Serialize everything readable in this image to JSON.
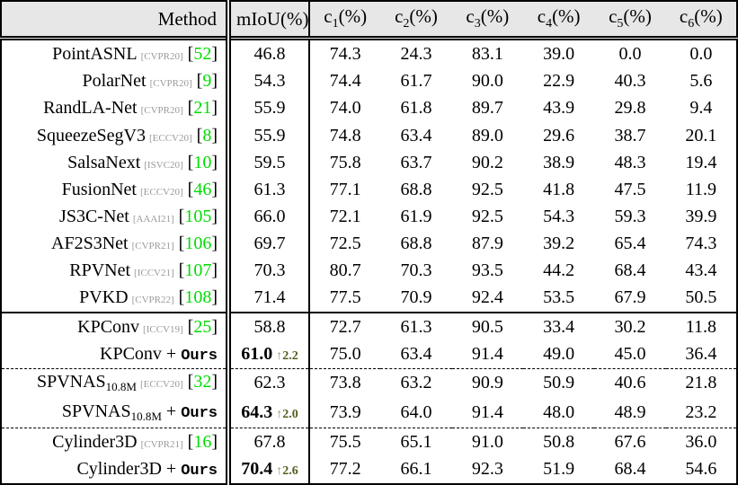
{
  "colors": {
    "header_bg": "#e7e7e7",
    "ref_green": "#00dd00",
    "gain_green": "#50601f",
    "gain_arrow": "#8d9a67",
    "venue_gray": "#9a9a9a"
  },
  "table": {
    "header": {
      "method": "Method",
      "miou": "mIoU(%)",
      "class_cols": [
        {
          "base": "c",
          "sub": "1",
          "suffix": "(%)"
        },
        {
          "base": "c",
          "sub": "2",
          "suffix": "(%)"
        },
        {
          "base": "c",
          "sub": "3",
          "suffix": "(%)"
        },
        {
          "base": "c",
          "sub": "4",
          "suffix": "(%)"
        },
        {
          "base": "c",
          "sub": "5",
          "suffix": "(%)"
        },
        {
          "base": "c",
          "sub": "6",
          "suffix": "(%)"
        }
      ]
    },
    "ours_plus": " + ",
    "ours_label": "Ours",
    "gain_arrow": "↑",
    "rows": [
      {
        "method": "PointASNL",
        "sub": "",
        "venue": "CVPR20",
        "ref": "52",
        "ours": false,
        "miou": "46.8",
        "gain": "",
        "cells": [
          "74.3",
          "24.3",
          "83.1",
          "39.0",
          "0.0",
          "0.0"
        ],
        "rule_after": ""
      },
      {
        "method": "PolarNet",
        "sub": "",
        "venue": "CVPR20",
        "ref": "9",
        "ours": false,
        "miou": "54.3",
        "gain": "",
        "cells": [
          "74.4",
          "61.7",
          "90.0",
          "22.9",
          "40.3",
          "5.6"
        ],
        "rule_after": ""
      },
      {
        "method": "RandLA-Net",
        "sub": "",
        "venue": "CVPR20",
        "ref": "21",
        "ours": false,
        "miou": "55.9",
        "gain": "",
        "cells": [
          "74.0",
          "61.8",
          "89.7",
          "43.9",
          "29.8",
          "9.4"
        ],
        "rule_after": ""
      },
      {
        "method": "SqueezeSegV3",
        "sub": "",
        "venue": "ECCV20",
        "ref": "8",
        "ours": false,
        "miou": "55.9",
        "gain": "",
        "cells": [
          "74.8",
          "63.4",
          "89.0",
          "29.6",
          "38.7",
          "20.1"
        ],
        "rule_after": ""
      },
      {
        "method": "SalsaNext",
        "sub": "",
        "venue": "ISVC20",
        "ref": "10",
        "ours": false,
        "miou": "59.5",
        "gain": "",
        "cells": [
          "75.8",
          "63.7",
          "90.2",
          "38.9",
          "48.3",
          "19.4"
        ],
        "rule_after": ""
      },
      {
        "method": "FusionNet",
        "sub": "",
        "venue": "ECCV20",
        "ref": "46",
        "ours": false,
        "miou": "61.3",
        "gain": "",
        "cells": [
          "77.1",
          "68.8",
          "92.5",
          "41.8",
          "47.5",
          "11.9"
        ],
        "rule_after": ""
      },
      {
        "method": "JS3C-Net",
        "sub": "",
        "venue": "AAAI21",
        "ref": "105",
        "ours": false,
        "miou": "66.0",
        "gain": "",
        "cells": [
          "72.1",
          "61.9",
          "92.5",
          "54.3",
          "59.3",
          "39.9"
        ],
        "rule_after": ""
      },
      {
        "method": "AF2S3Net",
        "sub": "",
        "venue": "CVPR21",
        "ref": "106",
        "ours": false,
        "miou": "69.7",
        "gain": "",
        "cells": [
          "72.5",
          "68.8",
          "87.9",
          "39.2",
          "65.4",
          "74.3"
        ],
        "rule_after": ""
      },
      {
        "method": "RPVNet",
        "sub": "",
        "venue": "ICCV21",
        "ref": "107",
        "ours": false,
        "miou": "70.3",
        "gain": "",
        "cells": [
          "80.7",
          "70.3",
          "93.5",
          "44.2",
          "68.4",
          "43.4"
        ],
        "rule_after": ""
      },
      {
        "method": "PVKD",
        "sub": "",
        "venue": "CVPR22",
        "ref": "108",
        "ours": false,
        "miou": "71.4",
        "gain": "",
        "cells": [
          "77.5",
          "70.9",
          "92.4",
          "53.5",
          "67.9",
          "50.5"
        ],
        "rule_after": "solid"
      },
      {
        "method": "KPConv",
        "sub": "",
        "venue": "ICCV19",
        "ref": "25",
        "ours": false,
        "miou": "58.8",
        "gain": "",
        "cells": [
          "72.7",
          "61.3",
          "90.5",
          "33.4",
          "30.2",
          "11.8"
        ],
        "rule_after": ""
      },
      {
        "method": "KPConv",
        "sub": "",
        "venue": "",
        "ref": "",
        "ours": true,
        "miou": "61.0",
        "gain": "2.2",
        "cells": [
          "75.0",
          "63.4",
          "91.4",
          "49.0",
          "45.0",
          "36.4"
        ],
        "rule_after": "dashed"
      },
      {
        "method": "SPVNAS",
        "sub": "10.8M",
        "venue": "ECCV20",
        "ref": "32",
        "ours": false,
        "miou": "62.3",
        "gain": "",
        "cells": [
          "73.8",
          "63.2",
          "90.9",
          "50.9",
          "40.6",
          "21.8"
        ],
        "rule_after": ""
      },
      {
        "method": "SPVNAS",
        "sub": "10.8M",
        "venue": "",
        "ref": "",
        "ours": true,
        "miou": "64.3",
        "gain": "2.0",
        "cells": [
          "73.9",
          "64.0",
          "91.4",
          "48.0",
          "48.9",
          "23.2"
        ],
        "rule_after": "dashed"
      },
      {
        "method": "Cylinder3D",
        "sub": "",
        "venue": "CVPR21",
        "ref": "16",
        "ours": false,
        "miou": "67.8",
        "gain": "",
        "cells": [
          "75.5",
          "65.1",
          "91.0",
          "50.8",
          "67.6",
          "36.0"
        ],
        "rule_after": ""
      },
      {
        "method": "Cylinder3D",
        "sub": "",
        "venue": "",
        "ref": "",
        "ours": true,
        "miou": "70.4",
        "gain": "2.6",
        "cells": [
          "77.2",
          "66.1",
          "92.3",
          "51.9",
          "68.4",
          "54.6"
        ],
        "rule_after": ""
      }
    ]
  }
}
